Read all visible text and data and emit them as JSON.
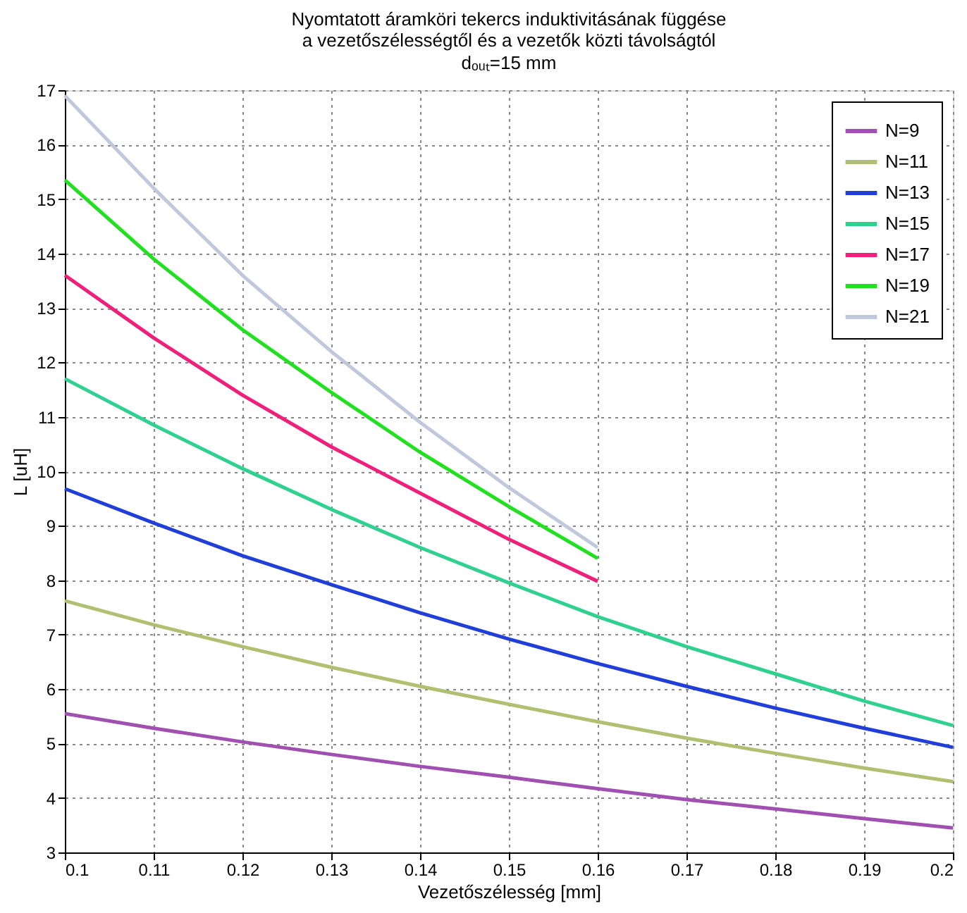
{
  "chart_data": {
    "type": "line",
    "title": "Nyomtatott áramköri tekercs induktivitásának függése\na vezetőszélességtől és a vezetők közti távolságtól",
    "subtitle": "dₒᵤₜ=15 mm",
    "xlabel": "Vezetőszélesség [mm]",
    "ylabel": "L [uH]",
    "x": [
      0.1,
      0.11,
      0.12,
      0.13,
      0.14,
      0.15,
      0.16,
      0.17,
      0.18,
      0.19,
      0.2
    ],
    "series": [
      {
        "name": "N=9",
        "color": "#a050b0",
        "values": [
          5.55,
          5.28,
          5.03,
          4.8,
          4.58,
          4.38,
          4.17,
          3.97,
          3.8,
          3.62,
          3.45
        ]
      },
      {
        "name": "N=11",
        "color": "#b0c070",
        "values": [
          7.62,
          7.18,
          6.78,
          6.4,
          6.05,
          5.72,
          5.4,
          5.1,
          4.82,
          4.55,
          4.3
        ]
      },
      {
        "name": "N=13",
        "color": "#1f3fd8",
        "values": [
          9.68,
          9.05,
          8.45,
          7.92,
          7.4,
          6.92,
          6.47,
          6.05,
          5.65,
          5.28,
          4.93
        ]
      },
      {
        "name": "N=15",
        "color": "#30d090",
        "values": [
          11.7,
          10.85,
          10.05,
          9.3,
          8.6,
          7.95,
          7.33,
          6.78,
          6.28,
          5.78,
          5.33
        ]
      },
      {
        "name": "N=17",
        "color": "#f0207a",
        "values": [
          13.6,
          12.45,
          11.4,
          10.45,
          9.6,
          8.75,
          7.98,
          null,
          null,
          null,
          null
        ]
      },
      {
        "name": "N=19",
        "color": "#20e020",
        "values": [
          15.35,
          13.9,
          12.6,
          11.45,
          10.35,
          9.35,
          8.4,
          null,
          null,
          null,
          null
        ]
      },
      {
        "name": "N=21",
        "color": "#c0c8dc",
        "values": [
          16.9,
          15.2,
          13.6,
          12.2,
          10.9,
          9.7,
          8.6,
          null,
          null,
          null,
          null
        ]
      }
    ],
    "xlim": [
      0.1,
      0.2
    ],
    "xticks": [
      0.1,
      0.11,
      0.12,
      0.13,
      0.14,
      0.15,
      0.16,
      0.17,
      0.18,
      0.19,
      0.2
    ],
    "ylim": [
      3,
      17
    ],
    "yticks": [
      3,
      4,
      5,
      6,
      7,
      8,
      9,
      10,
      11,
      12,
      13,
      14,
      15,
      16,
      17
    ],
    "grid": true,
    "legend": "top right",
    "marker": "none",
    "line_style": "solid"
  }
}
